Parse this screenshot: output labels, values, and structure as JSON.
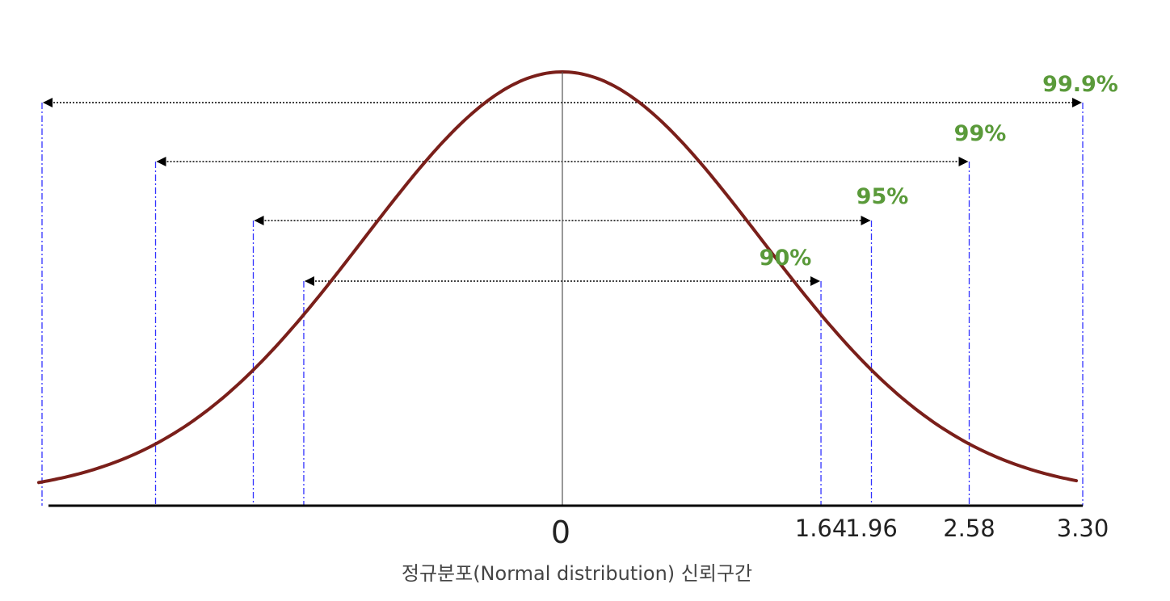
{
  "chart_data": {
    "type": "line",
    "curve": "normal distribution",
    "x_ticks": [
      {
        "value": 0,
        "label": "0"
      },
      {
        "value": 1.64,
        "label": "1.64"
      },
      {
        "value": 1.96,
        "label": "1.96"
      },
      {
        "value": 2.58,
        "label": "2.58"
      },
      {
        "value": 3.3,
        "label": "3.30"
      }
    ],
    "intervals": [
      {
        "z": 1.64,
        "label": "90%"
      },
      {
        "z": 1.96,
        "label": "95%"
      },
      {
        "z": 2.58,
        "label": "99%"
      },
      {
        "z": 3.3,
        "label": "99.9%"
      }
    ],
    "colors": {
      "curve": "#7a1f1a",
      "interval_label": "#5a9a3a",
      "guide_line": "#3333ff",
      "axis": "#000000"
    }
  },
  "caption": "정규분포(Normal distribution) 신뢰구간"
}
